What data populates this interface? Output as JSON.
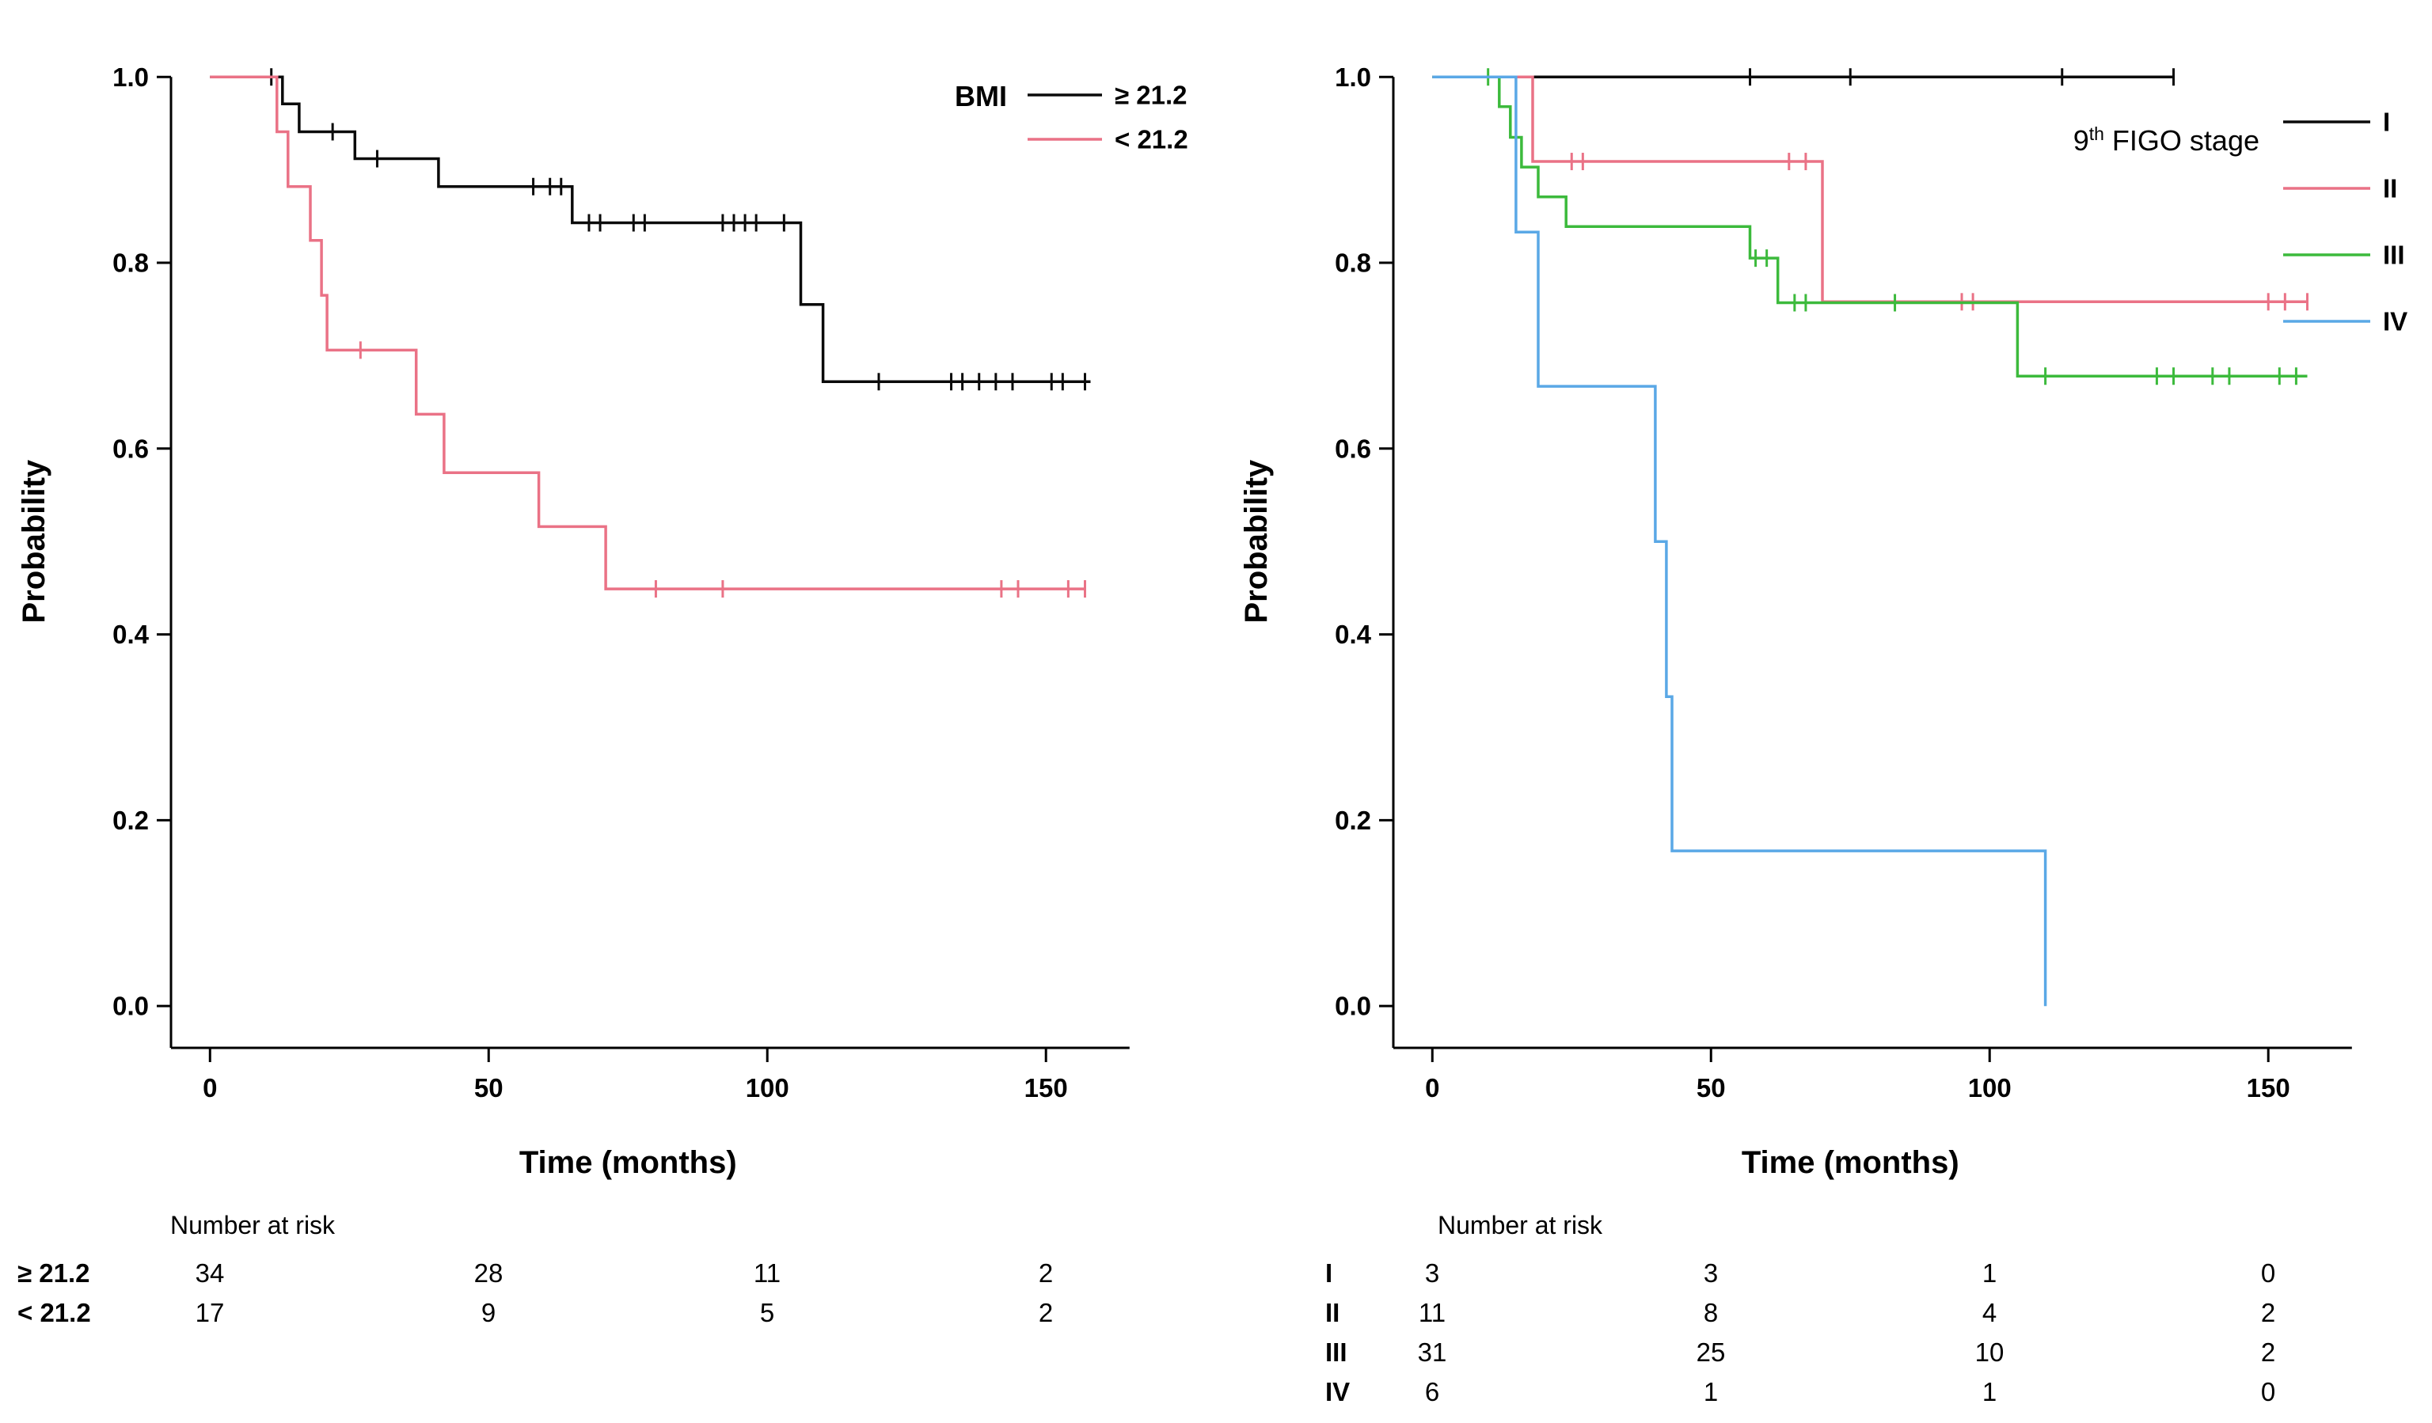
{
  "chart_data": [
    {
      "type": "line",
      "subtype": "kaplan-meier-step",
      "xlabel": "Time (months)",
      "ylabel": "Probability",
      "xticks": [
        0,
        50,
        100,
        150
      ],
      "yticks": [
        "1.0",
        "0.8",
        "0.6",
        "0.4",
        "0.2",
        "0.0"
      ],
      "ytick_values": [
        1.0,
        0.8,
        0.6,
        0.4,
        0.2,
        0.0
      ],
      "xlim": [
        -7,
        170
      ],
      "ylim": [
        -0.045,
        1.03
      ],
      "grid": false,
      "legend": {
        "title": "BMI",
        "title_style": "bold",
        "position": "top-right",
        "items": [
          {
            "label": "≥ 21.2",
            "color": "#0a0a0a"
          },
          {
            "label": "< 21.2",
            "color": "#ea7286"
          }
        ]
      },
      "series": [
        {
          "name": "≥ 21.2",
          "color": "#0a0a0a",
          "steps": [
            [
              0,
              1.0
            ],
            [
              13,
              0.971
            ],
            [
              16,
              0.941
            ],
            [
              26,
              0.912
            ],
            [
              41,
              0.882
            ],
            [
              65,
              0.843
            ],
            [
              106,
              0.755
            ],
            [
              110,
              0.672
            ]
          ],
          "end": 158,
          "censors": [
            [
              11,
              1.0
            ],
            [
              22,
              0.941
            ],
            [
              30,
              0.912
            ],
            [
              58,
              0.882
            ],
            [
              61,
              0.882
            ],
            [
              63,
              0.882
            ],
            [
              68,
              0.843
            ],
            [
              70,
              0.843
            ],
            [
              76,
              0.843
            ],
            [
              78,
              0.843
            ],
            [
              92,
              0.843
            ],
            [
              94,
              0.843
            ],
            [
              96,
              0.843
            ],
            [
              98,
              0.843
            ],
            [
              103,
              0.843
            ],
            [
              120,
              0.672
            ],
            [
              133,
              0.672
            ],
            [
              135,
              0.672
            ],
            [
              138,
              0.672
            ],
            [
              141,
              0.672
            ],
            [
              144,
              0.672
            ],
            [
              151,
              0.672
            ],
            [
              153,
              0.672
            ],
            [
              157,
              0.672
            ]
          ]
        },
        {
          "name": "< 21.2",
          "color": "#ea7286",
          "steps": [
            [
              0,
              1.0
            ],
            [
              12,
              0.941
            ],
            [
              14,
              0.882
            ],
            [
              18,
              0.824
            ],
            [
              20,
              0.765
            ],
            [
              21,
              0.706
            ],
            [
              37,
              0.637
            ],
            [
              42,
              0.574
            ],
            [
              59,
              0.516
            ],
            [
              71,
              0.449
            ]
          ],
          "end": 157,
          "censors": [
            [
              27,
              0.706
            ],
            [
              80,
              0.449
            ],
            [
              92,
              0.449
            ],
            [
              142,
              0.449
            ],
            [
              145,
              0.449
            ],
            [
              154,
              0.449
            ],
            [
              157,
              0.449
            ]
          ]
        }
      ],
      "risk_table": {
        "title": "Number at risk",
        "times": [
          0,
          50,
          100,
          150
        ],
        "rows": [
          {
            "label": "≥ 21.2",
            "counts": [
              34,
              28,
              11,
              2
            ]
          },
          {
            "label": "< 21.2",
            "counts": [
              17,
              9,
              5,
              2
            ]
          }
        ]
      }
    },
    {
      "type": "line",
      "subtype": "kaplan-meier-step",
      "xlabel": "Time (months)",
      "ylabel": "Probability",
      "xticks": [
        0,
        50,
        100,
        150
      ],
      "yticks": [
        "1.0",
        "0.8",
        "0.6",
        "0.4",
        "0.2",
        "0.0"
      ],
      "ytick_values": [
        1.0,
        0.8,
        0.6,
        0.4,
        0.2,
        0.0
      ],
      "xlim": [
        -7,
        170
      ],
      "ylim": [
        -0.045,
        1.03
      ],
      "grid": false,
      "legend": {
        "title": "9th FIGO stage",
        "title_style": "normal",
        "position": "top-right",
        "items": [
          {
            "label": "I",
            "color": "#0a0a0a"
          },
          {
            "label": "II",
            "color": "#ea7286"
          },
          {
            "label": "III",
            "color": "#3cba3c"
          },
          {
            "label": "IV",
            "color": "#5aa8e6"
          }
        ]
      },
      "series": [
        {
          "name": "I",
          "color": "#0a0a0a",
          "steps": [
            [
              0,
              1.0
            ]
          ],
          "end": 133,
          "censors": [
            [
              57,
              1.0
            ],
            [
              75,
              1.0
            ],
            [
              113,
              1.0
            ],
            [
              133,
              1.0
            ]
          ]
        },
        {
          "name": "II",
          "color": "#ea7286",
          "steps": [
            [
              0,
              1.0
            ],
            [
              18,
              0.909
            ],
            [
              70,
              0.758
            ]
          ],
          "end": 157,
          "censors": [
            [
              25,
              0.909
            ],
            [
              27,
              0.909
            ],
            [
              64,
              0.909
            ],
            [
              67,
              0.909
            ],
            [
              95,
              0.758
            ],
            [
              97,
              0.758
            ],
            [
              150,
              0.758
            ],
            [
              153,
              0.758
            ],
            [
              157,
              0.758
            ]
          ]
        },
        {
          "name": "III",
          "color": "#3cba3c",
          "steps": [
            [
              0,
              1.0
            ],
            [
              12,
              0.968
            ],
            [
              14,
              0.935
            ],
            [
              16,
              0.903
            ],
            [
              19,
              0.871
            ],
            [
              24,
              0.839
            ],
            [
              57,
              0.805
            ],
            [
              62,
              0.757
            ],
            [
              105,
              0.678
            ]
          ],
          "end": 157,
          "censors": [
            [
              10,
              1.0
            ],
            [
              58,
              0.805
            ],
            [
              60,
              0.805
            ],
            [
              65,
              0.757
            ],
            [
              67,
              0.757
            ],
            [
              83,
              0.757
            ],
            [
              110,
              0.678
            ],
            [
              130,
              0.678
            ],
            [
              133,
              0.678
            ],
            [
              140,
              0.678
            ],
            [
              143,
              0.678
            ],
            [
              152,
              0.678
            ],
            [
              155,
              0.678
            ]
          ]
        },
        {
          "name": "IV",
          "color": "#5aa8e6",
          "steps": [
            [
              0,
              1.0
            ],
            [
              15,
              0.833
            ],
            [
              19,
              0.667
            ],
            [
              40,
              0.5
            ],
            [
              42,
              0.333
            ],
            [
              43,
              0.167
            ],
            [
              110,
              0.0
            ]
          ],
          "end": 110,
          "censors": []
        }
      ],
      "risk_table": {
        "title": "Number at risk",
        "times": [
          0,
          50,
          100,
          150
        ],
        "rows": [
          {
            "label": "I",
            "counts": [
              3,
              3,
              1,
              0
            ]
          },
          {
            "label": "II",
            "counts": [
              11,
              8,
              4,
              2
            ]
          },
          {
            "label": "III",
            "counts": [
              31,
              25,
              10,
              2
            ]
          },
          {
            "label": "IV",
            "counts": [
              6,
              1,
              1,
              0
            ]
          }
        ]
      }
    }
  ]
}
